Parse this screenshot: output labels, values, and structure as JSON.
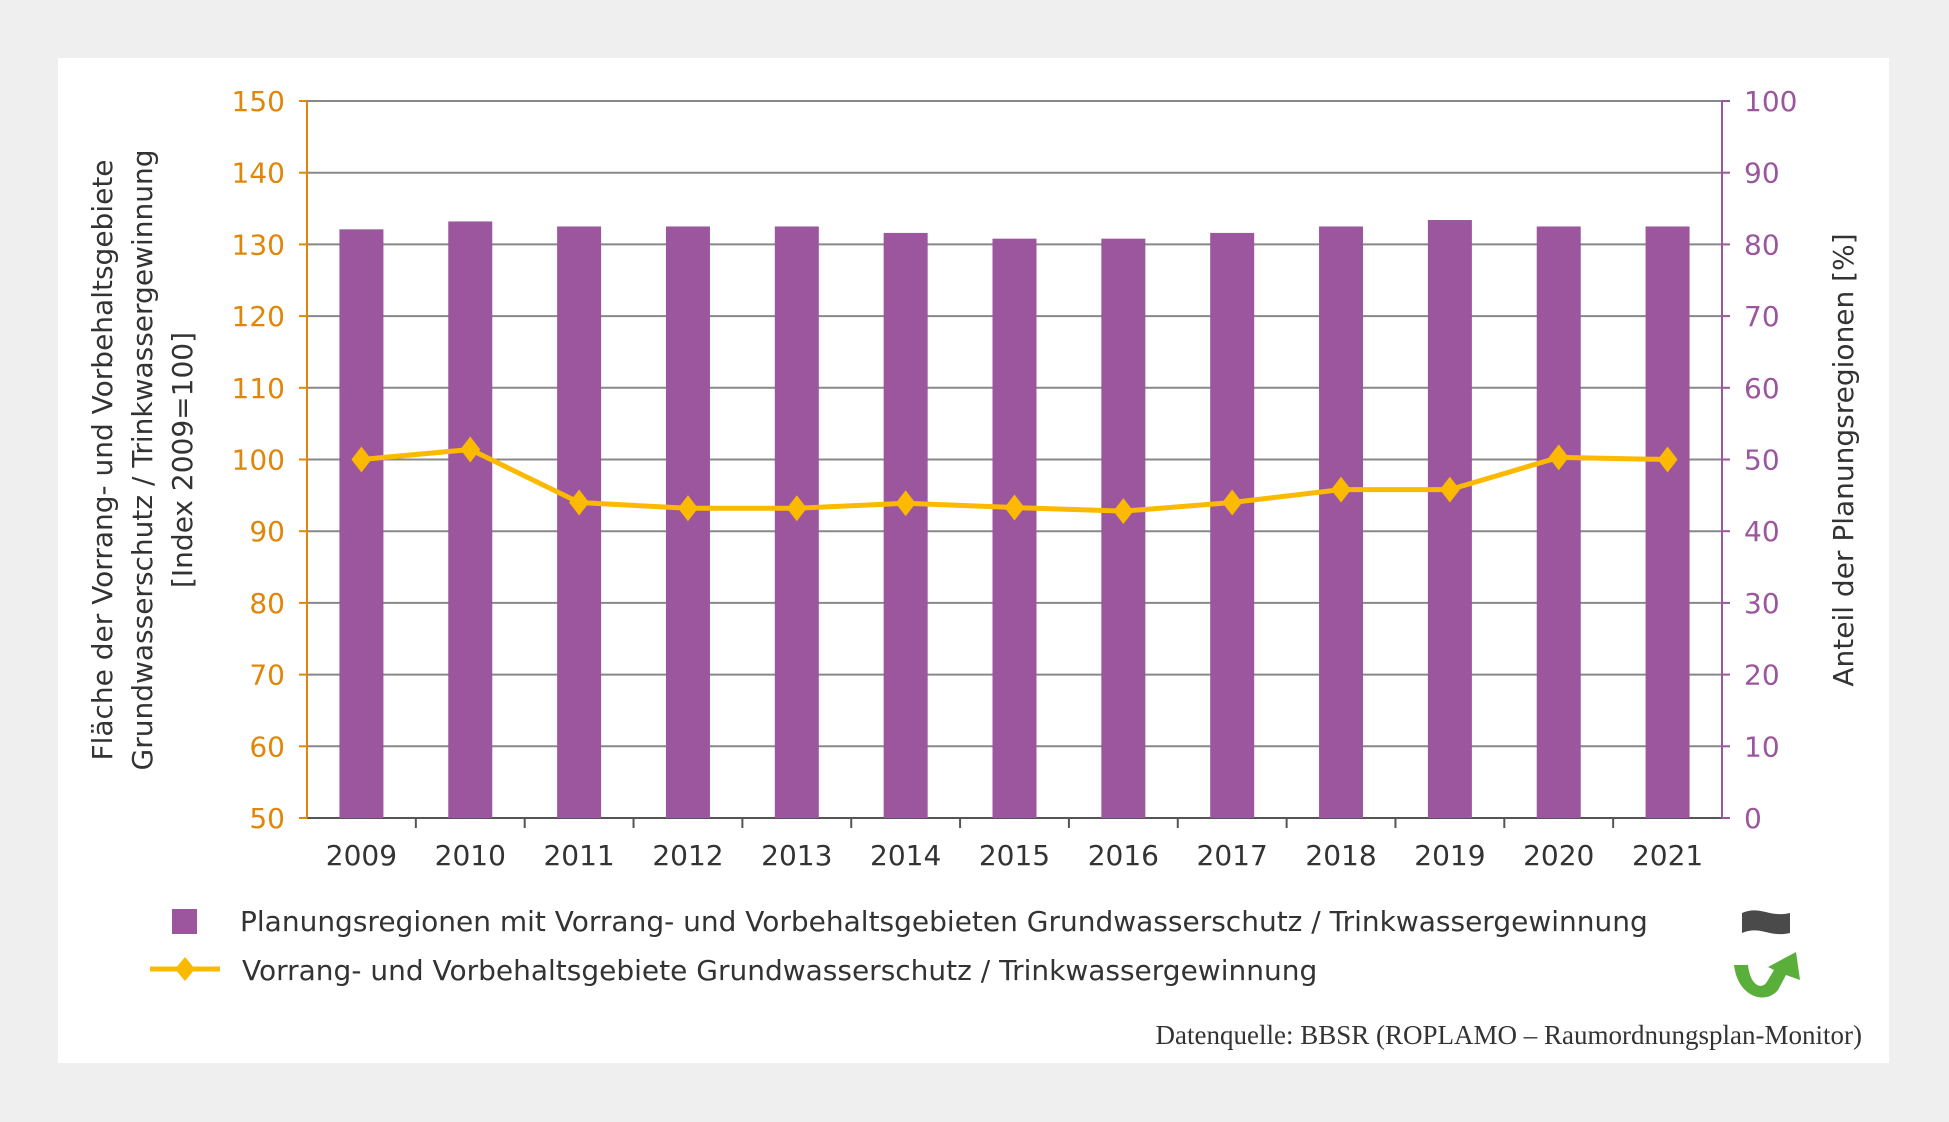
{
  "chart_data": {
    "type": "bar+line",
    "categories": [
      "2009",
      "2010",
      "2011",
      "2012",
      "2013",
      "2014",
      "2015",
      "2016",
      "2017",
      "2018",
      "2019",
      "2020",
      "2021"
    ],
    "series": [
      {
        "name": "Planungsregionen mit Vorrang- und Vorbehaltsgebieten Grundwasserschutz / Trinkwassergewinnung",
        "type": "bar",
        "axis": "right",
        "color": "#9b569e",
        "values": [
          82.1,
          83.2,
          82.5,
          82.5,
          82.5,
          81.6,
          80.8,
          80.8,
          81.6,
          82.5,
          83.4,
          82.5,
          82.5
        ]
      },
      {
        "name": "Vorrang- und Vorbehaltsgebiete Grundwasserschutz / Trinkwassergewinnung",
        "type": "line",
        "axis": "left",
        "color": "#fbb900",
        "values": [
          100,
          101.4,
          94.0,
          93.2,
          93.2,
          93.9,
          93.3,
          92.8,
          94.0,
          95.8,
          95.8,
          100.3,
          100.0
        ]
      }
    ],
    "ylabel_left": [
      "Fläche der Vorrang- und Vorbehaltsgebiete",
      "Grundwasserschutz / Trinkwassergewinnung",
      "[Index 2009=100]"
    ],
    "ylabel_right": "Anteil der Planungsregionen [%]",
    "ylim_left": [
      50,
      150
    ],
    "yticks_left": [
      "50",
      "60",
      "70",
      "80",
      "90",
      "100",
      "110",
      "120",
      "130",
      "140",
      "150"
    ],
    "ylim_right": [
      0,
      100
    ],
    "yticks_right": [
      "0",
      "10",
      "20",
      "30",
      "40",
      "50",
      "60",
      "70",
      "80",
      "90",
      "100"
    ],
    "left_axis_color": "#e0870a",
    "right_axis_color": "#9b569e",
    "grid": true,
    "legend_position": "bottom",
    "trend_icons": [
      "neutral-wave-icon",
      "positive-arrow-up-icon"
    ],
    "source": "Datenquelle: BBSR (ROPLAMO – Raumordnungsplan-Monitor)"
  }
}
